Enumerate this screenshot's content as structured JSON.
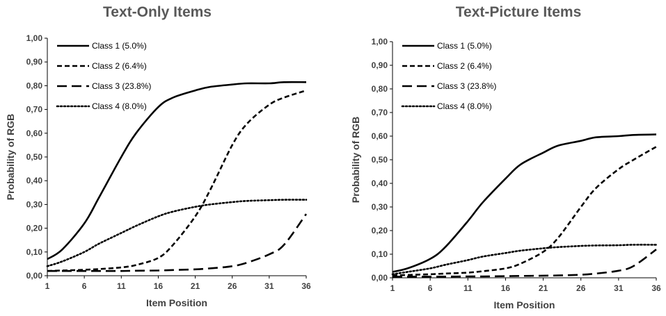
{
  "chart_data": [
    {
      "type": "line",
      "title": "Text-Only Items",
      "xlabel": "Item Position",
      "ylabel": "Probability of RGB",
      "xlim": [
        1,
        36
      ],
      "ylim": [
        0,
        1
      ],
      "x_ticks": [
        "1",
        "6",
        "11",
        "16",
        "21",
        "26",
        "31",
        "36"
      ],
      "y_ticks": [
        "0,00",
        "0,10",
        "0,20",
        "0,30",
        "0,40",
        "0,50",
        "0,60",
        "0,70",
        "0,80",
        "0,90",
        "1,00"
      ],
      "legend_position": "top-left",
      "grid": false,
      "x": [
        1,
        3,
        6,
        8,
        11,
        13,
        16,
        18,
        21,
        23,
        26,
        28,
        31,
        33,
        36
      ],
      "series": [
        {
          "name": "Class 1 (5.0%)",
          "style": "solid",
          "values": [
            0.07,
            0.11,
            0.22,
            0.33,
            0.5,
            0.6,
            0.71,
            0.75,
            0.78,
            0.795,
            0.805,
            0.81,
            0.81,
            0.815,
            0.815
          ]
        },
        {
          "name": "Class 2 (6.4%)",
          "style": "short-dash",
          "values": [
            0.02,
            0.022,
            0.025,
            0.028,
            0.035,
            0.045,
            0.075,
            0.13,
            0.25,
            0.36,
            0.55,
            0.64,
            0.72,
            0.75,
            0.78
          ]
        },
        {
          "name": "Class 3 (23.8%)",
          "style": "long-dash",
          "values": [
            0.02,
            0.02,
            0.02,
            0.02,
            0.02,
            0.021,
            0.022,
            0.024,
            0.027,
            0.031,
            0.04,
            0.055,
            0.09,
            0.13,
            0.26
          ]
        },
        {
          "name": "Class 4 (8.0%)",
          "style": "dotted",
          "values": [
            0.04,
            0.06,
            0.1,
            0.135,
            0.18,
            0.21,
            0.25,
            0.27,
            0.29,
            0.3,
            0.31,
            0.315,
            0.318,
            0.32,
            0.32
          ]
        }
      ]
    },
    {
      "type": "line",
      "title": "Text-Picture Items",
      "xlabel": "Item Position",
      "ylabel": "Probability of RGB",
      "xlim": [
        1,
        36
      ],
      "ylim": [
        0,
        1
      ],
      "x_ticks": [
        "1",
        "6",
        "11",
        "16",
        "21",
        "26",
        "31",
        "36"
      ],
      "y_ticks": [
        "0,00",
        "0,10",
        "0,20",
        "0,30",
        "0,40",
        "0,50",
        "0,60",
        "0,70",
        "0,80",
        "0,90",
        "1,00"
      ],
      "legend_position": "top-left",
      "grid": false,
      "x": [
        1,
        3,
        6,
        8,
        11,
        13,
        16,
        18,
        21,
        23,
        26,
        28,
        31,
        33,
        36
      ],
      "series": [
        {
          "name": "Class 1 (5.0%)",
          "style": "solid",
          "values": [
            0.025,
            0.04,
            0.08,
            0.13,
            0.24,
            0.32,
            0.42,
            0.48,
            0.53,
            0.56,
            0.58,
            0.595,
            0.6,
            0.605,
            0.607
          ]
        },
        {
          "name": "Class 2 (6.4%)",
          "style": "short-dash",
          "values": [
            0.01,
            0.012,
            0.015,
            0.018,
            0.022,
            0.028,
            0.04,
            0.06,
            0.11,
            0.17,
            0.3,
            0.38,
            0.46,
            0.5,
            0.555
          ]
        },
        {
          "name": "Class 3 (23.8%)",
          "style": "long-dash",
          "values": [
            0.005,
            0.005,
            0.005,
            0.005,
            0.006,
            0.006,
            0.007,
            0.008,
            0.009,
            0.01,
            0.013,
            0.018,
            0.03,
            0.05,
            0.12
          ]
        },
        {
          "name": "Class 4 (8.0%)",
          "style": "dotted",
          "values": [
            0.015,
            0.025,
            0.04,
            0.055,
            0.075,
            0.09,
            0.105,
            0.115,
            0.125,
            0.13,
            0.135,
            0.137,
            0.138,
            0.14,
            0.14
          ]
        }
      ]
    }
  ]
}
